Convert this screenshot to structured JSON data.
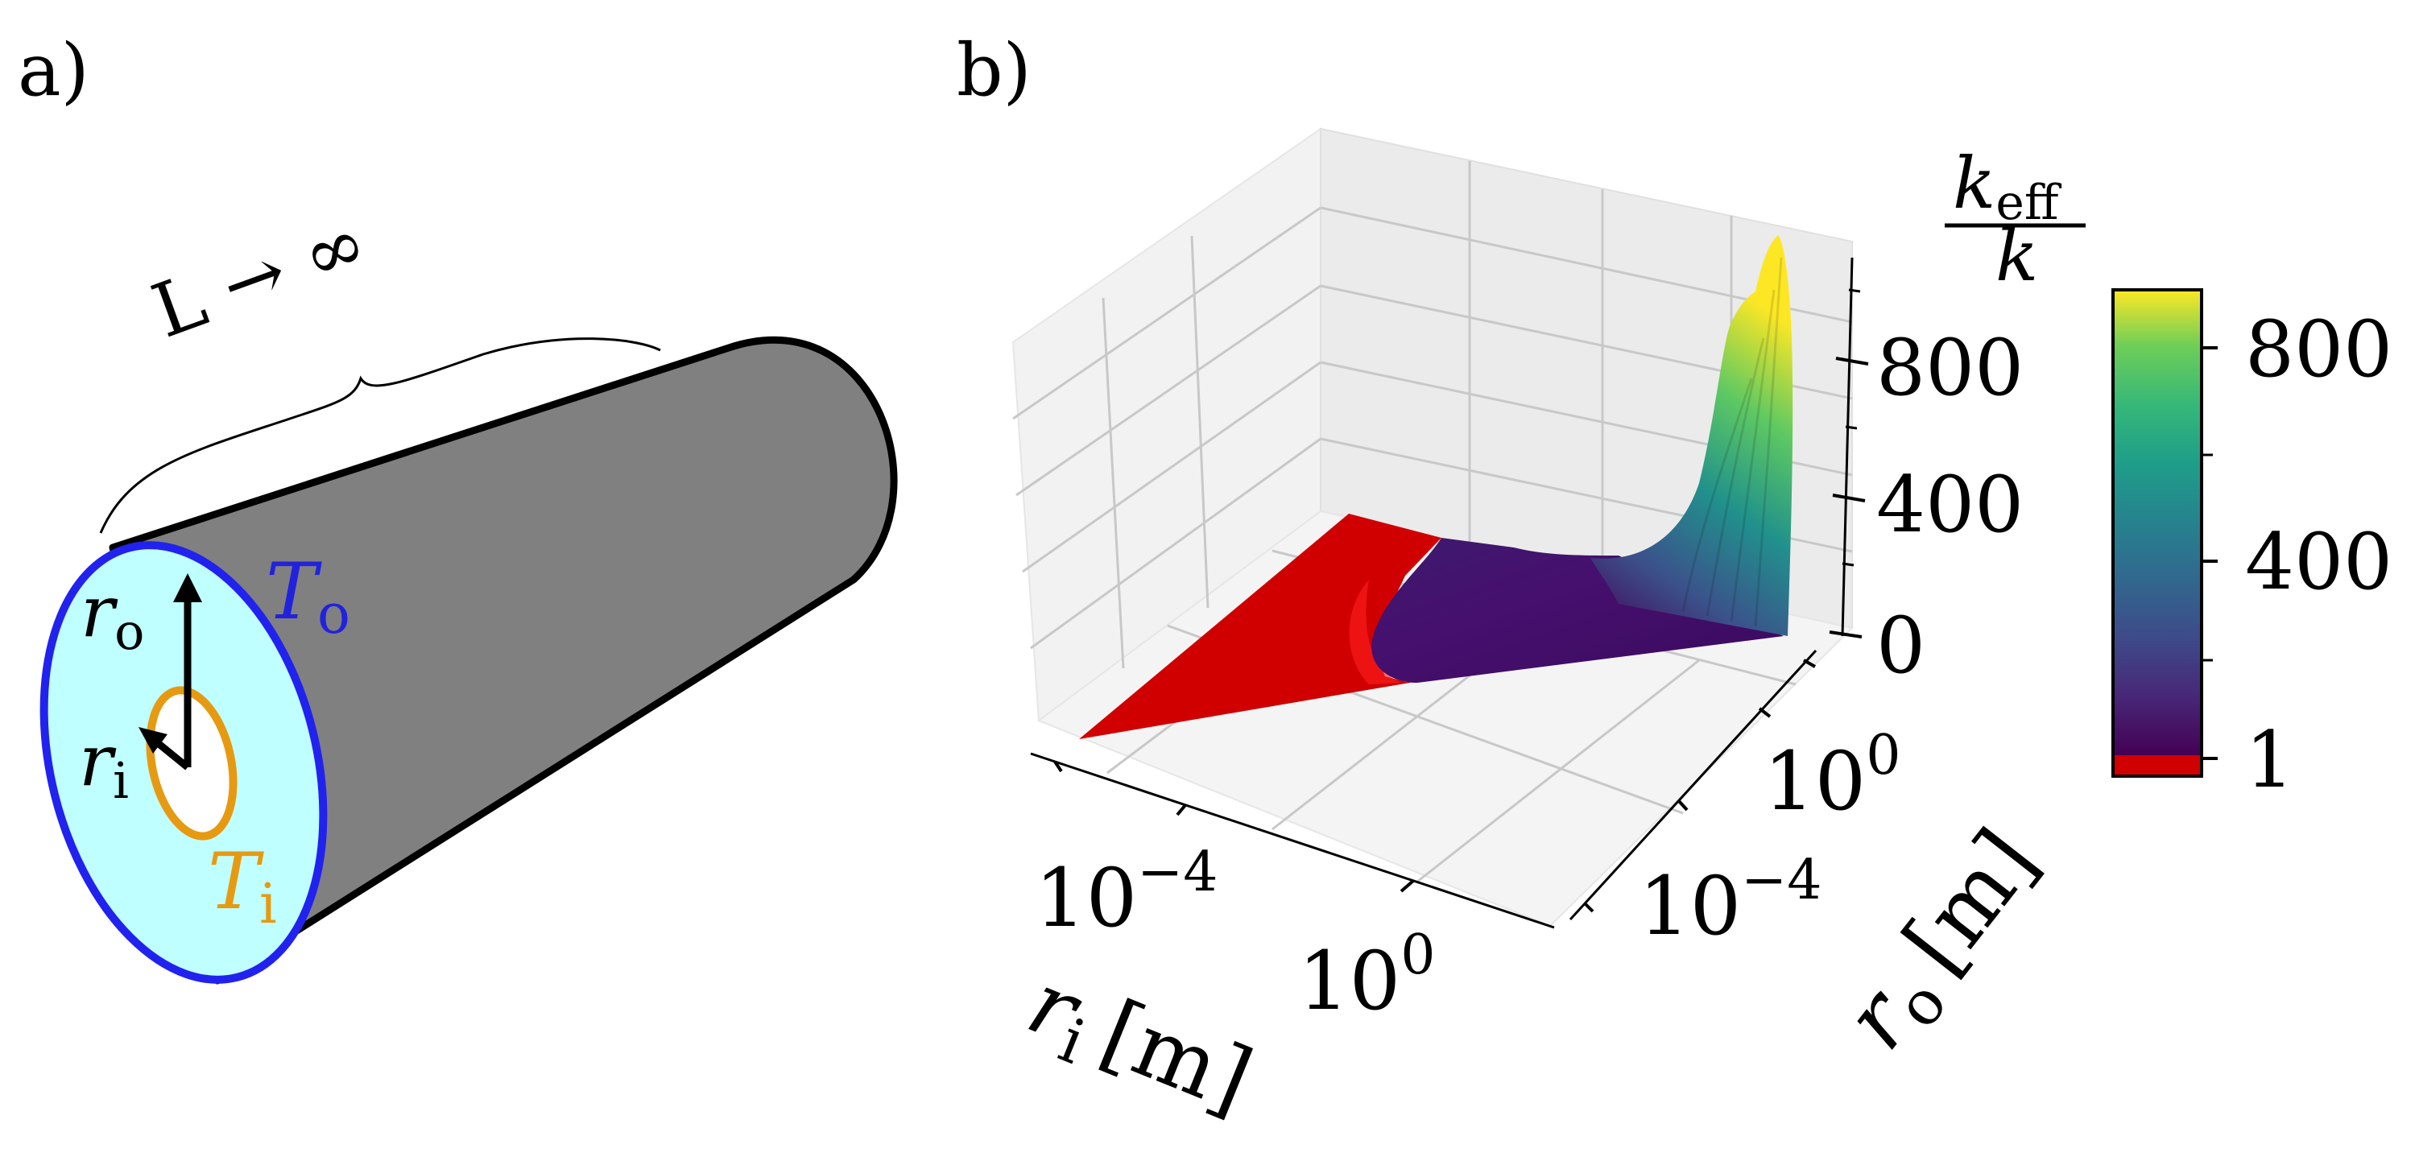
{
  "panel_a": {
    "label": "a)",
    "length_label": "L → ∞",
    "outer_radius_symbol": "r",
    "outer_radius_sub": "o",
    "inner_radius_symbol": "r",
    "inner_radius_sub": "i",
    "outer_temp_symbol": "T",
    "outer_temp_sub": "o",
    "inner_temp_symbol": "T",
    "inner_temp_sub": "i"
  },
  "panel_b": {
    "label": "b)",
    "z_axis": {
      "label_numerator_symbol": "k",
      "label_numerator_sub": "eff",
      "label_denominator": "k",
      "ticks": [
        "800",
        "400",
        "0"
      ]
    },
    "x_axis": {
      "label_symbol": "r",
      "label_sub": "i",
      "label_unit": "[m]",
      "tick_base": "10",
      "tick_exponents": [
        "−4",
        "0"
      ]
    },
    "y_axis": {
      "label_symbol": "r",
      "label_sub": "o",
      "label_unit": "[m]",
      "tick_base": "10",
      "tick_exponents": [
        "−4",
        "0"
      ]
    },
    "colorbar": {
      "ticks": [
        "800",
        "400",
        "1"
      ],
      "colormap": "viridis",
      "below_one_color": "#d10000"
    }
  },
  "colors": {
    "cylinder_body": "#808080",
    "end_face": "#bfffff",
    "outer_ring": "#2222ee",
    "inner_ring": "#e69a12",
    "outer_temp_text": "#2222dd",
    "inner_temp_text": "#e69a12"
  }
}
